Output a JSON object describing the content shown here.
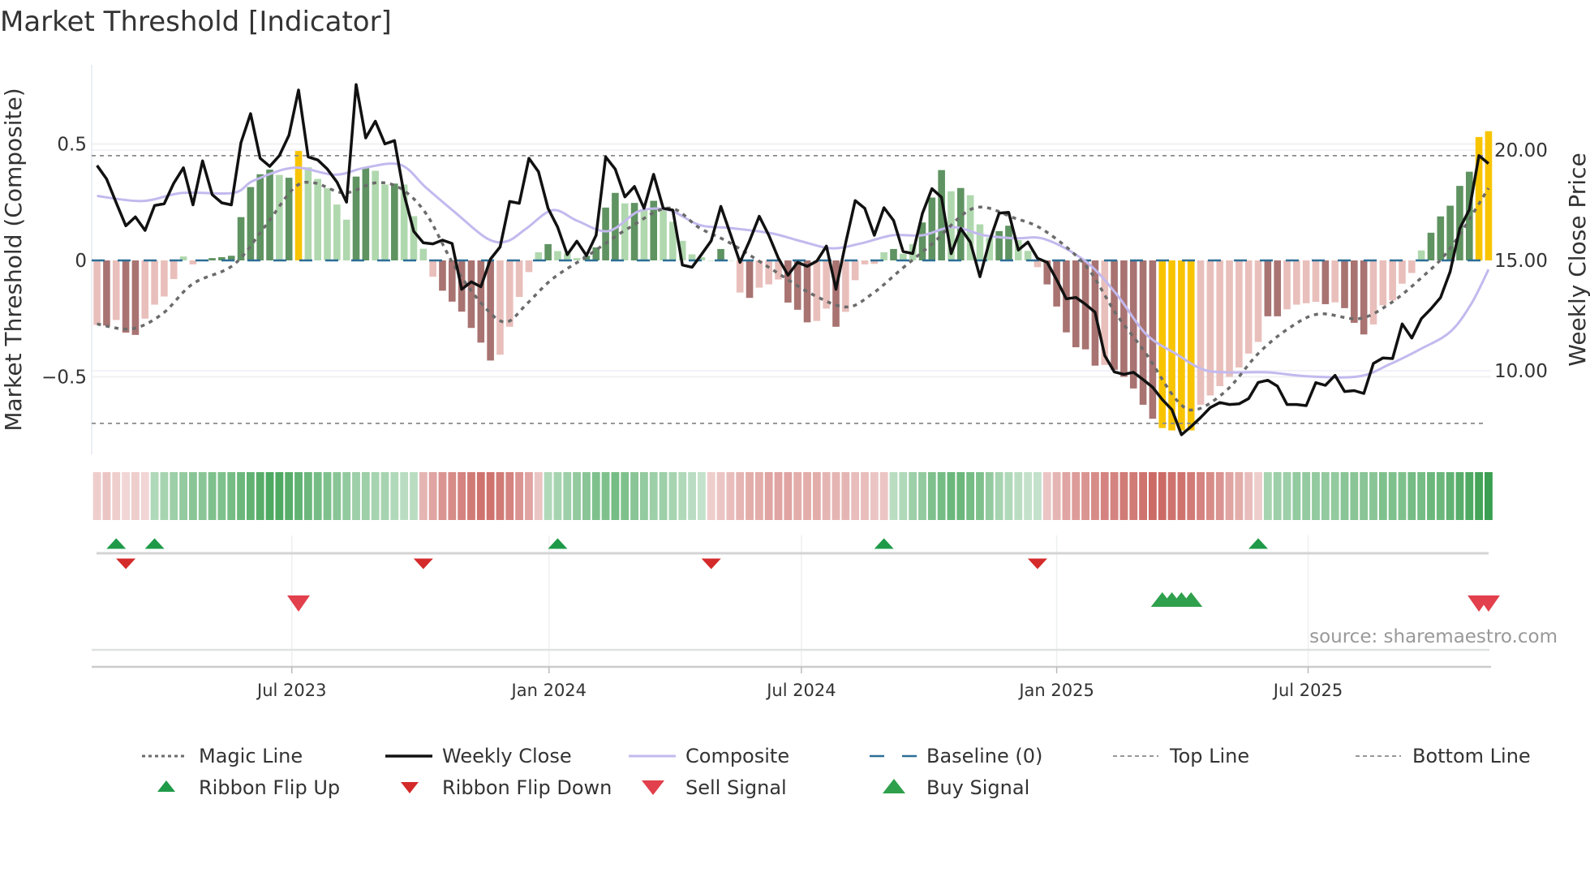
{
  "title": "Market Threshold [Indicator]",
  "chart_data": {
    "type": "bar",
    "title": "Market Threshold [Indicator]",
    "ylabel_left": "Market Threshold (Composite)",
    "ylabel_right": "Weekly Close Price",
    "ylim_left": [
      -0.82,
      0.8
    ],
    "ylim_right_ticks": [
      "10.00",
      "15.00",
      "20.00"
    ],
    "left_ticks": [
      {
        "value": 0.5,
        "label": "0.5"
      },
      {
        "value": 0,
        "label": "0"
      },
      {
        "value": -0.5,
        "label": "−0.5"
      }
    ],
    "right_ticks": [
      {
        "value": 20,
        "label": "20.00"
      },
      {
        "value": 15,
        "label": "15.00"
      },
      {
        "value": 10,
        "label": "10.00"
      }
    ],
    "x_ticks": [
      {
        "label": "Jul 2023",
        "week": 20.3
      },
      {
        "label": "Jan 2024",
        "week": 47.1
      },
      {
        "label": "Jul 2024",
        "week": 73.4
      },
      {
        "label": "Jan 2025",
        "week": 100.0
      },
      {
        "label": "Jul 2025",
        "week": 126.2
      }
    ],
    "weeks": 146,
    "top_line": 0.45,
    "bottom_line": -0.7,
    "baseline": 0,
    "composite_bars": [
      -0.277,
      -0.28,
      -0.256,
      -0.31,
      -0.32,
      -0.25,
      -0.19,
      -0.155,
      -0.08,
      0.017,
      -0.017,
      0.003,
      0.01,
      0.014,
      0.02,
      0.186,
      0.315,
      0.37,
      0.39,
      0.367,
      0.355,
      0.47,
      0.4,
      0.35,
      0.31,
      0.24,
      0.175,
      0.36,
      0.4,
      0.385,
      0.326,
      0.33,
      0.326,
      0.19,
      0.05,
      -0.07,
      -0.13,
      -0.177,
      -0.22,
      -0.29,
      -0.353,
      -0.43,
      -0.405,
      -0.285,
      -0.157,
      -0.05,
      0.035,
      0.07,
      0.04,
      0.03,
      0.01,
      0.02,
      0.056,
      0.227,
      0.29,
      0.245,
      0.247,
      0.22,
      0.256,
      0.22,
      0.166,
      0.084,
      0.026,
      0.014,
      0.0,
      0.049,
      0.0,
      -0.138,
      -0.161,
      -0.117,
      -0.103,
      -0.082,
      -0.181,
      -0.212,
      -0.266,
      -0.26,
      -0.207,
      -0.285,
      -0.221,
      -0.085,
      -0.017,
      -0.015,
      0.035,
      0.049,
      0.029,
      0.07,
      0.163,
      0.27,
      0.388,
      0.297,
      0.311,
      0.28,
      0.155,
      0.097,
      0.126,
      0.149,
      0.087,
      0.041,
      -0.029,
      -0.103,
      -0.198,
      -0.309,
      -0.373,
      -0.382,
      -0.452,
      -0.449,
      -0.47,
      -0.5,
      -0.55,
      -0.62,
      -0.68,
      -0.72,
      -0.73,
      -0.73,
      -0.73,
      -0.62,
      -0.58,
      -0.54,
      -0.5,
      -0.46,
      -0.4,
      -0.35,
      -0.24,
      -0.24,
      -0.21,
      -0.19,
      -0.184,
      -0.178,
      -0.188,
      -0.18,
      -0.205,
      -0.268,
      -0.318,
      -0.275,
      -0.193,
      -0.172,
      -0.1,
      -0.054,
      0.043,
      0.119,
      0.189,
      0.235,
      0.32,
      0.381,
      0.53,
      0.555
    ],
    "bar_tone": "LDLDDLLLLLLLDDDDDDDLDYLLLLLDDLLDLLLLDDDDDDLLLLLDLLLDDDDLDLDLLLLLLDLLDLLLDDDLLDLLLLLDLLDDDLDLLLDDLLLDDDDDDLDDDDDYYYYLLLLLLLDDLLLLDLDDDLLLLLLDDDDDYY",
    "weekly_close": [
      19.3,
      18.69,
      17.61,
      16.57,
      16.97,
      16.36,
      17.49,
      17.57,
      18.5,
      19.2,
      17.52,
      19.51,
      17.98,
      17.61,
      17.52,
      20.33,
      21.65,
      19.63,
      19.26,
      19.75,
      20.67,
      22.72,
      19.69,
      19.55,
      19.14,
      18.55,
      17.64,
      22.97,
      20.55,
      21.31,
      20.28,
      20.43,
      17.98,
      16.32,
      15.8,
      15.75,
      15.92,
      15.77,
      13.69,
      14.03,
      13.81,
      15.06,
      15.61,
      17.67,
      17.59,
      19.63,
      19.02,
      17.36,
      16.51,
      15.26,
      15.87,
      15.22,
      16.14,
      19.69,
      19.14,
      17.88,
      18.35,
      17.36,
      18.9,
      17.36,
      17.28,
      14.79,
      14.69,
      15.28,
      15.89,
      17.45,
      16.2,
      14.91,
      15.89,
      17.0,
      16.14,
      15.1,
      14.33,
      14.91,
      14.73,
      14.97,
      15.65,
      13.69,
      15.77,
      17.71,
      17.36,
      16.14,
      17.39,
      16.81,
      15.4,
      15.31,
      17.12,
      18.25,
      17.86,
      15.31,
      16.45,
      15.83,
      14.26,
      15.87,
      17.14,
      17.18,
      15.47,
      15.83,
      15.1,
      14.91,
      14.12,
      13.26,
      13.32,
      13.01,
      12.65,
      10.69,
      9.95,
      9.84,
      9.93,
      9.6,
      9.25,
      8.7,
      8.24,
      7.1,
      7.47,
      7.88,
      8.33,
      8.56,
      8.47,
      8.5,
      8.74,
      9.47,
      9.57,
      9.3,
      8.47,
      8.47,
      8.42,
      9.46,
      9.34,
      9.79,
      9.06,
      9.1,
      8.97,
      10.33,
      10.58,
      10.55,
      12.12,
      11.48,
      12.36,
      12.81,
      13.32,
      14.49,
      16.45,
      17.3,
      19.75,
      19.39
    ],
    "composite_line": [
      [
        0,
        0.277
      ],
      [
        4.7,
        0.255
      ],
      [
        8.9,
        0.29
      ],
      [
        14.2,
        0.29
      ],
      [
        16.3,
        0.342
      ],
      [
        20.5,
        0.398
      ],
      [
        24.8,
        0.368
      ],
      [
        27.9,
        0.398
      ],
      [
        31.6,
        0.411
      ],
      [
        34.3,
        0.312
      ],
      [
        37.4,
        0.203
      ],
      [
        40.6,
        0.095
      ],
      [
        42.7,
        0.082
      ],
      [
        44.8,
        0.139
      ],
      [
        47.5,
        0.216
      ],
      [
        50.1,
        0.169
      ],
      [
        53.3,
        0.126
      ],
      [
        56.5,
        0.212
      ],
      [
        59.6,
        0.216
      ],
      [
        62.8,
        0.152
      ],
      [
        66,
        0.139
      ],
      [
        70.2,
        0.117
      ],
      [
        73.4,
        0.082
      ],
      [
        76.6,
        0.052
      ],
      [
        79.7,
        0.074
      ],
      [
        82.9,
        0.108
      ],
      [
        86,
        0.108
      ],
      [
        89.2,
        0.143
      ],
      [
        92.4,
        0.108
      ],
      [
        95.6,
        0.095
      ],
      [
        98.8,
        0.091
      ],
      [
        103,
        -0.004
      ],
      [
        106.2,
        -0.143
      ],
      [
        109.3,
        -0.316
      ],
      [
        112.5,
        -0.403
      ],
      [
        115.2,
        -0.468
      ],
      [
        117.8,
        -0.481
      ],
      [
        122,
        -0.481
      ],
      [
        126.2,
        -0.498
      ],
      [
        131.5,
        -0.498
      ],
      [
        134.7,
        -0.446
      ],
      [
        137.9,
        -0.381
      ],
      [
        141,
        -0.307
      ],
      [
        143.2,
        -0.186
      ],
      [
        145,
        -0.039
      ]
    ],
    "magic_line": [
      [
        0,
        -0.273
      ],
      [
        3.6,
        -0.294
      ],
      [
        6.8,
        -0.23
      ],
      [
        10,
        -0.1
      ],
      [
        14.2,
        -0.02
      ],
      [
        17.4,
        0.14
      ],
      [
        20.5,
        0.31
      ],
      [
        22.6,
        0.333
      ],
      [
        25.8,
        0.29
      ],
      [
        29,
        0.333
      ],
      [
        31.6,
        0.31
      ],
      [
        34.3,
        0.2
      ],
      [
        37.4,
        -0.035
      ],
      [
        40.6,
        -0.21
      ],
      [
        42.7,
        -0.264
      ],
      [
        44.8,
        -0.186
      ],
      [
        47.5,
        -0.078
      ],
      [
        51.2,
        0.022
      ],
      [
        55.4,
        0.139
      ],
      [
        59.6,
        0.225
      ],
      [
        62.8,
        0.139
      ],
      [
        66,
        0.074
      ],
      [
        70.2,
        -0.035
      ],
      [
        74.4,
        -0.143
      ],
      [
        78.1,
        -0.2
      ],
      [
        80.8,
        -0.143
      ],
      [
        83.9,
        -0.035
      ],
      [
        87.1,
        0.074
      ],
      [
        91.4,
        0.225
      ],
      [
        95.6,
        0.182
      ],
      [
        98.8,
        0.126
      ],
      [
        103,
        -0.022
      ],
      [
        106.2,
        -0.23
      ],
      [
        109.3,
        -0.4
      ],
      [
        112.5,
        -0.6
      ],
      [
        114.6,
        -0.64
      ],
      [
        117.8,
        -0.554
      ],
      [
        121,
        -0.4
      ],
      [
        124.1,
        -0.294
      ],
      [
        127.3,
        -0.23
      ],
      [
        131.5,
        -0.25
      ],
      [
        134.7,
        -0.186
      ],
      [
        137.9,
        -0.078
      ],
      [
        141,
        0.052
      ],
      [
        145,
        0.31
      ]
    ],
    "ribbon": [
      -0.15,
      -0.2,
      -0.15,
      -0.1,
      -0.15,
      -0.1,
      0.25,
      0.3,
      0.35,
      0.4,
      0.45,
      0.45,
      0.5,
      0.5,
      0.55,
      0.6,
      0.65,
      0.7,
      0.75,
      0.75,
      0.7,
      0.65,
      0.6,
      0.55,
      0.5,
      0.45,
      0.4,
      0.35,
      0.35,
      0.3,
      0.3,
      0.25,
      0.2,
      0.2,
      -0.3,
      -0.4,
      -0.5,
      -0.55,
      -0.6,
      -0.65,
      -0.7,
      -0.7,
      -0.65,
      -0.6,
      -0.5,
      -0.4,
      -0.2,
      0.25,
      0.3,
      0.35,
      0.4,
      0.45,
      0.5,
      0.5,
      0.55,
      0.5,
      0.45,
      0.4,
      0.35,
      0.35,
      0.3,
      0.25,
      0.2,
      0.15,
      -0.15,
      -0.2,
      -0.25,
      -0.3,
      -0.35,
      -0.35,
      -0.4,
      -0.4,
      -0.4,
      -0.35,
      -0.35,
      -0.35,
      -0.3,
      -0.3,
      -0.3,
      -0.25,
      -0.25,
      -0.2,
      -0.2,
      0.2,
      0.25,
      0.35,
      0.4,
      0.5,
      0.55,
      0.6,
      0.6,
      0.55,
      0.5,
      0.4,
      0.3,
      0.25,
      0.2,
      0.15,
      0.15,
      -0.2,
      -0.3,
      -0.4,
      -0.45,
      -0.5,
      -0.55,
      -0.6,
      -0.6,
      -0.65,
      -0.65,
      -0.7,
      -0.75,
      -0.75,
      -0.7,
      -0.7,
      -0.65,
      -0.6,
      -0.55,
      -0.5,
      -0.4,
      -0.35,
      -0.25,
      -0.15,
      0.3,
      0.35,
      0.35,
      0.4,
      0.4,
      0.4,
      0.4,
      0.4,
      0.45,
      0.45,
      0.45,
      0.45,
      0.5,
      0.5,
      0.5,
      0.55,
      0.55,
      0.6,
      0.6,
      0.65,
      0.7,
      0.75,
      0.8,
      0.85
    ],
    "ribbon_flip_up": [
      2,
      6,
      48,
      82,
      121
    ],
    "ribbon_flip_down": [
      3,
      34,
      64,
      98
    ],
    "sell_signals": [
      21,
      144,
      145
    ],
    "buy_signals": [
      111,
      112,
      113,
      114
    ],
    "colors": {
      "bar_dark_green": "#5f9361",
      "bar_light_green": "#b0d8ae",
      "bar_dark_red": "#a87371",
      "bar_light_red": "#e9bfbb",
      "bar_yellow": "#f8c400",
      "weekly_close": "#111111",
      "composite": "#c3b9ee",
      "magic": "#6b6b6b",
      "baseline": "#2c6e96",
      "threshold": "#8a8a8a",
      "ribbon_green": "#3a9f50",
      "ribbon_red": "#c65a55",
      "flip_up": "#1e9a48",
      "flip_down": "#d42a2a",
      "sell": "#e2404c",
      "buy": "#2fa04c"
    },
    "legend": {
      "placement": "bottom",
      "items": [
        {
          "label": "Magic Line",
          "kind": "magic"
        },
        {
          "label": "Weekly Close",
          "kind": "close"
        },
        {
          "label": "Composite",
          "kind": "composite"
        },
        {
          "label": "Baseline (0)",
          "kind": "baseline"
        },
        {
          "label": "Top Line",
          "kind": "threshold"
        },
        {
          "label": "Bottom Line",
          "kind": "threshold"
        },
        {
          "label": "Ribbon Flip Up",
          "kind": "flip_up"
        },
        {
          "label": "Ribbon Flip Down",
          "kind": "flip_down"
        },
        {
          "label": "Sell Signal",
          "kind": "sell"
        },
        {
          "label": "Buy Signal",
          "kind": "buy"
        }
      ]
    },
    "source": "source: sharemaestro.com"
  }
}
